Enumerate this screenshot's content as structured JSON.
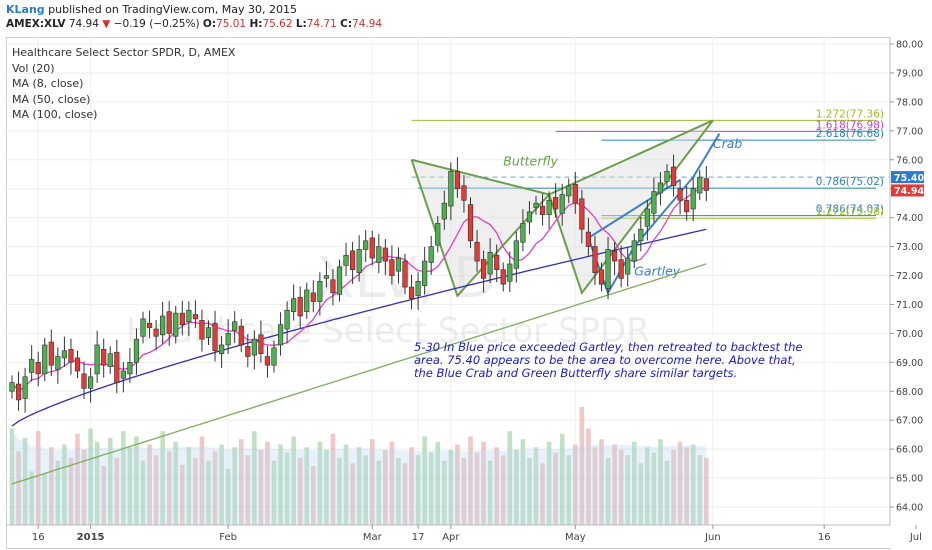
{
  "header": {
    "author": "KLang",
    "published_text": "published on TradingView.com, May 30, 2015",
    "symbol": "AMEX:XLV",
    "last": "74.94",
    "change": "−0.19 (−0.25%)",
    "o_label": "O:",
    "o_value": "75.01",
    "h_label": "H:",
    "h_value": "75.62",
    "l_label": "L:",
    "l_value": "74.71",
    "c_label": "C:",
    "c_value": "74.94"
  },
  "legend": {
    "title": "Healthcare Select Sector SPDR, D, AMEX",
    "indicators": [
      "Vol (20)",
      "MA (8, close)",
      "MA (50, close)",
      "MA (100, close)"
    ]
  },
  "watermark": {
    "symbol": "XLV, D",
    "name": "Healthcare Select Sector SPDR"
  },
  "annotation": "5-30 In Blue price exceeded Gartley, then retreated to backtest the area.  75.40 appears to be the area to overcome here. Above that, the Blue Crab and Green Butterfly share similar targets.",
  "colors": {
    "up": "#4caf50",
    "down": "#e53935",
    "ma8": "#e040c8",
    "ma50": "#2e2ebf",
    "ma100": "#7cb05a",
    "butterfly": "#6a9f4a",
    "gartley": "#3a7fd0"
  },
  "chart_data": {
    "type": "candlestick",
    "y_axis": {
      "min": 64,
      "max": 80,
      "ticks": [
        "64.00",
        "65.00",
        "66.00",
        "67.00",
        "68.00",
        "69.00",
        "70.00",
        "71.00",
        "72.00",
        "73.00",
        "74.00",
        "75.00",
        "76.00",
        "77.00",
        "78.00",
        "79.00",
        "80.00"
      ]
    },
    "x_axis": {
      "ticks": [
        "16",
        "2015",
        "Feb",
        "Mar",
        "17",
        "Apr",
        "May",
        "Jun",
        "16",
        "Jul"
      ]
    },
    "price_tags": [
      {
        "value": 75.4,
        "text": "75.40",
        "color": "#2a7bd1"
      },
      {
        "value": 74.94,
        "text": "74.94",
        "color": "#e53935"
      }
    ],
    "fib_levels": [
      {
        "ratio": "1.272",
        "value": 77.36,
        "text": "1.272(77.36)",
        "color": "#9bbf2a"
      },
      {
        "ratio": "1.618",
        "value": 76.98,
        "text": "1.618(76.98)",
        "color": "#d23fc0"
      },
      {
        "ratio": "2.618",
        "value": 76.68,
        "text": "2.618(76.68)",
        "color": "#2a86b8"
      },
      {
        "ratio": "0.786",
        "value": 75.02,
        "text": "0.786(75.02)",
        "color": "#2a86b8"
      },
      {
        "ratio": "0.786",
        "value": 74.07,
        "text": "0.786(74.07)",
        "color": "#2a86b8"
      },
      {
        "ratio": "1.272",
        "value": 73.98,
        "text": "1.272(73.98)",
        "color": "#9bbf2a"
      }
    ],
    "pattern_labels": {
      "butterfly": "Butterfly",
      "crab": "Crab",
      "gartley": "Gartley"
    },
    "closes": [
      68.3,
      67.7,
      68.5,
      69.1,
      68.6,
      69.6,
      68.9,
      69.2,
      69.4,
      69.0,
      68.7,
      68.1,
      68.5,
      69.6,
      68.9,
      69.3,
      68.3,
      68.7,
      69.0,
      69.8,
      70.5,
      70.2,
      69.9,
      70.6,
      70.0,
      70.7,
      70.3,
      70.8,
      70.5,
      69.8,
      70.2,
      69.4,
      69.6,
      70.0,
      70.4,
      69.6,
      69.2,
      69.8,
      69.3,
      68.9,
      69.5,
      70.3,
      70.8,
      71.2,
      70.6,
      71.5,
      71.1,
      71.8,
      72.0,
      71.4,
      72.3,
      72.7,
      72.2,
      72.9,
      73.2,
      72.6,
      73.0,
      72.5,
      72.0,
      72.6,
      71.6,
      71.2,
      71.8,
      72.5,
      73.0,
      73.8,
      74.5,
      75.6,
      75.0,
      74.6,
      73.2,
      72.5,
      71.9,
      72.8,
      72.2,
      71.7,
      72.4,
      73.2,
      73.8,
      74.2,
      74.5,
      74.1,
      74.6,
      74.3,
      74.8,
      75.1,
      74.5,
      73.6,
      73.0,
      72.1,
      71.7,
      72.9,
      72.5,
      71.9,
      72.6,
      73.2,
      73.6,
      74.3,
      74.9,
      75.2,
      75.6,
      75.1,
      74.6,
      74.2,
      75.0,
      75.4,
      74.94
    ],
    "volumes": [
      72,
      55,
      65,
      40,
      70,
      38,
      58,
      48,
      60,
      50,
      68,
      56,
      72,
      62,
      44,
      65,
      50,
      70,
      58,
      66,
      48,
      60,
      52,
      70,
      55,
      62,
      45,
      58,
      50,
      66,
      48,
      55,
      60,
      42,
      58,
      64,
      52,
      70,
      56,
      62,
      48,
      60,
      54,
      66,
      50,
      58,
      44,
      62,
      56,
      68,
      50,
      60,
      46,
      58,
      52,
      64,
      48,
      56,
      62,
      50,
      46,
      58,
      52,
      66,
      54,
      62,
      48,
      56,
      60,
      50,
      66,
      54,
      62,
      48,
      58,
      52,
      70,
      56,
      64,
      50,
      58,
      46,
      62,
      54,
      68,
      52,
      60,
      88,
      72,
      58,
      64,
      50,
      60,
      56,
      52,
      62,
      46,
      58,
      54,
      64,
      48,
      56,
      62,
      58,
      60,
      52,
      50
    ]
  }
}
